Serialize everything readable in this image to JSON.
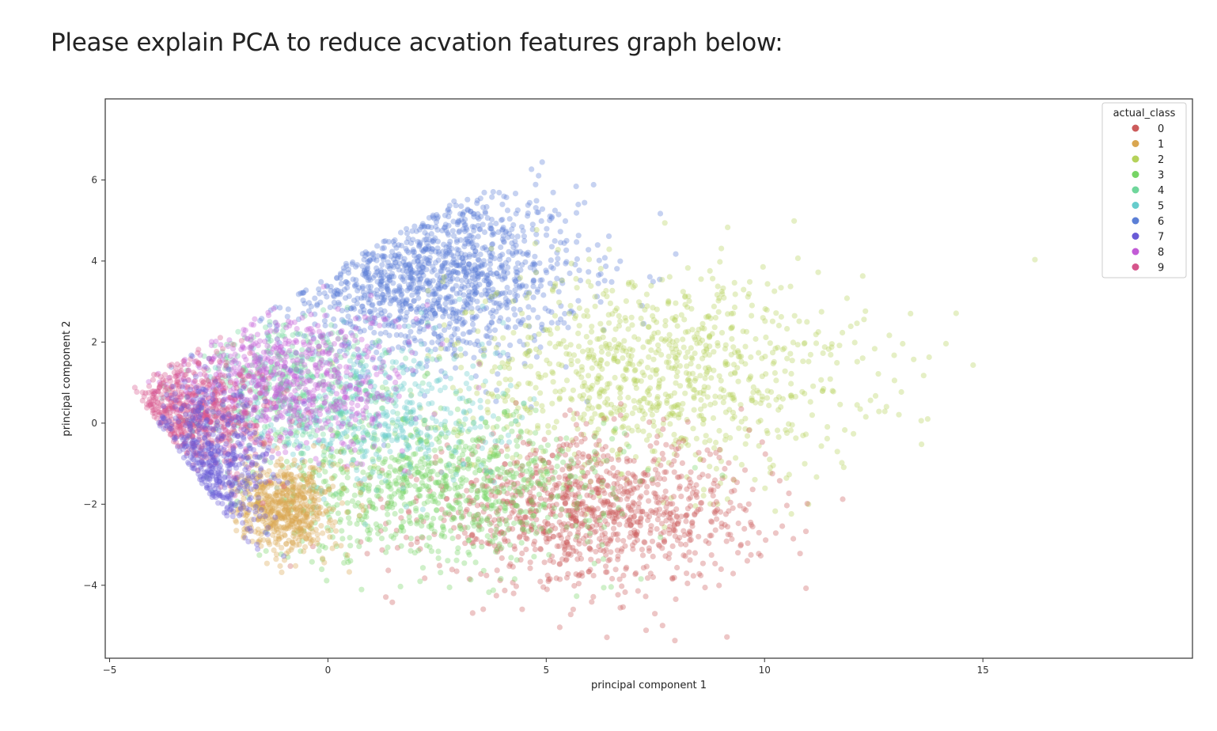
{
  "question": "Please explain PCA to reduce acvation features graph below:",
  "chart_data": {
    "type": "scatter",
    "title": "",
    "xlabel": "principal component 1",
    "ylabel": "principal component 2",
    "xlim": [
      -5.1,
      19.8
    ],
    "ylim": [
      -5.8,
      8.0
    ],
    "xticks": [
      -5,
      0,
      5,
      10,
      15
    ],
    "yticks": [
      6,
      4,
      2,
      0,
      -2,
      -4
    ],
    "xtick_labels": [
      "−5",
      "0",
      "5",
      "10",
      "15"
    ],
    "ytick_labels": [
      "6",
      "4",
      "2",
      "0",
      "−2",
      "−4"
    ],
    "legend": {
      "title": "actual_class",
      "position": "top-right",
      "entries": [
        "0",
        "1",
        "2",
        "3",
        "4",
        "5",
        "6",
        "7",
        "8",
        "9"
      ]
    },
    "point_alpha": 0.35,
    "series": [
      {
        "name": "0",
        "color": "#cc5b5b",
        "n": 1100,
        "cx": 6.0,
        "cy": -2.2,
        "sx": 1.9,
        "sy": 0.9
      },
      {
        "name": "1",
        "color": "#d9a650",
        "n": 600,
        "cx": -1.0,
        "cy": -2.1,
        "sx": 0.55,
        "sy": 0.55
      },
      {
        "name": "2",
        "color": "#b5d25a",
        "n": 1000,
        "cx": 7.5,
        "cy": 1.2,
        "sx": 2.4,
        "sy": 1.3
      },
      {
        "name": "3",
        "color": "#76d465",
        "n": 900,
        "cx": 2.5,
        "cy": -1.6,
        "sx": 2.0,
        "sy": 0.9
      },
      {
        "name": "4",
        "color": "#6fd69b",
        "n": 400,
        "cx": -1.0,
        "cy": 1.0,
        "sx": 1.2,
        "sy": 0.8
      },
      {
        "name": "5",
        "color": "#66cccc",
        "n": 500,
        "cx": 1.0,
        "cy": 0.3,
        "sx": 1.5,
        "sy": 1.0
      },
      {
        "name": "6",
        "color": "#5b7fd6",
        "n": 1300,
        "cx": 2.2,
        "cy": 3.7,
        "sx": 1.8,
        "sy": 1.1
      },
      {
        "name": "7",
        "color": "#6a5bd6",
        "n": 500,
        "cx": -2.8,
        "cy": -1.4,
        "sx": 0.7,
        "sy": 1.1
      },
      {
        "name": "8",
        "color": "#c25bd6",
        "n": 700,
        "cx": -1.0,
        "cy": 1.0,
        "sx": 1.4,
        "sy": 0.9
      },
      {
        "name": "9",
        "color": "#d6558c",
        "n": 600,
        "cx": -3.2,
        "cy": 0.2,
        "sx": 0.9,
        "sy": 0.7
      }
    ]
  }
}
